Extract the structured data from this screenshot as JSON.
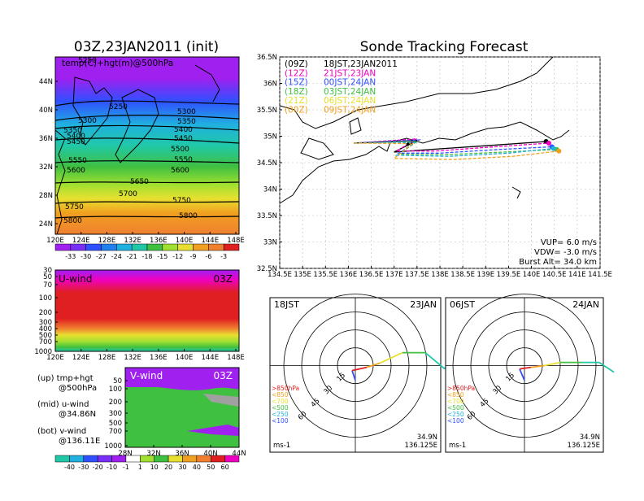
{
  "header": {
    "left_title": "03Z,23JAN2011 (init)",
    "right_title": "Sonde Tracking Forecast"
  },
  "colors": {
    "purple": "#a020f0",
    "blue": "#3050ff",
    "cyan": "#20b0e0",
    "teal": "#20c8a8",
    "green": "#40c040",
    "lime": "#a0e030",
    "yellow": "#e8e030",
    "orange": "#f0a020",
    "red": "#e02020",
    "magenta": "#f000c0",
    "grey": "#a0a0a0"
  },
  "chart_data": [
    {
      "type": "heatmap",
      "title": "temp(C)+hgt(m)@500hPa",
      "x_ticks": [
        "120E",
        "124E",
        "128E",
        "132E",
        "136E",
        "140E",
        "144E",
        "148E"
      ],
      "y_ticks": [
        "24N",
        "28N",
        "32N",
        "36N",
        "40N",
        "44N"
      ],
      "contour_labels": [
        "5250",
        "5250",
        "5300",
        "5300",
        "5350",
        "5350",
        "5400",
        "5400",
        "5450",
        "5450",
        "5500",
        "5550",
        "5550",
        "5600",
        "5600",
        "5650",
        "5700",
        "5750",
        "5750",
        "5800",
        "5800"
      ],
      "colorbar": [
        "-33",
        "-30",
        "-27",
        "-24",
        "-21",
        "-18",
        "-15",
        "-12",
        "-9",
        "-6",
        "-3"
      ]
    },
    {
      "type": "heatmap",
      "title": "U-wind",
      "tag": "03Z",
      "x_ticks": [
        "120E",
        "124E",
        "128E",
        "132E",
        "136E",
        "140E",
        "144E",
        "148E"
      ],
      "y_ticks": [
        "30",
        "50",
        "70",
        "100",
        "200",
        "300",
        "400",
        "500",
        "700",
        "1000"
      ]
    },
    {
      "type": "heatmap",
      "title": "V-wind",
      "tag": "03Z",
      "x_ticks": [
        "28N",
        "32N",
        "36N",
        "40N",
        "44N"
      ],
      "y_ticks": [
        "50",
        "100",
        "200",
        "300",
        "500",
        "700",
        "1000"
      ],
      "colorbar": [
        "-40",
        "-30",
        "-20",
        "-10",
        "-1",
        "1",
        "10",
        "20",
        "30",
        "40",
        "50",
        "60"
      ]
    },
    {
      "type": "line",
      "title": "Sonde Tracking Forecast",
      "x_ticks": [
        "134.5E",
        "135E",
        "135.5E",
        "136E",
        "136.5E",
        "137E",
        "137.5E",
        "138E",
        "138.5E",
        "139E",
        "139.5E",
        "140E",
        "140.5E",
        "141E",
        "141.5E"
      ],
      "y_ticks": [
        "32.5N",
        "33N",
        "33.5N",
        "34N",
        "34.5N",
        "35N",
        "35.5N",
        "36N",
        "36.5N"
      ],
      "xlim": [
        134.5,
        141.5
      ],
      "ylim": [
        32.5,
        36.5
      ],
      "legend": [
        {
          "code": "(09Z)",
          "time": "18JST,23JAN2011"
        },
        {
          "code": "(12Z)",
          "time": "21JST,23JAN"
        },
        {
          "code": "(15Z)",
          "time": "00JST,24JAN"
        },
        {
          "code": "(18Z)",
          "time": "03JST,24JAN"
        },
        {
          "code": "(21Z)",
          "time": "06JST,24JAN"
        },
        {
          "code": "(00Z)",
          "time": "09JST,24JAN"
        }
      ],
      "series": [
        {
          "color": "black",
          "end": [
            140.32,
            34.9
          ],
          "points": [
            [
              136.12,
              34.87
            ],
            [
              137.5,
              34.92
            ],
            [
              137.0,
              34.7
            ],
            [
              137.8,
              34.75
            ],
            [
              139.0,
              34.82
            ],
            [
              140.32,
              34.9
            ]
          ]
        },
        {
          "color": "magenta",
          "end": [
            140.38,
            34.87
          ],
          "points": [
            [
              136.12,
              34.87
            ],
            [
              137.5,
              34.95
            ],
            [
              137.05,
              34.72
            ],
            [
              137.9,
              34.72
            ],
            [
              139.2,
              34.8
            ],
            [
              140.38,
              34.87
            ]
          ]
        },
        {
          "color": "blue",
          "end": [
            140.45,
            34.8
          ],
          "points": [
            [
              136.12,
              34.87
            ],
            [
              137.55,
              34.93
            ],
            [
              137.1,
              34.68
            ],
            [
              138.0,
              34.68
            ],
            [
              139.3,
              34.75
            ],
            [
              140.45,
              34.8
            ]
          ]
        },
        {
          "color": "green",
          "end": [
            140.55,
            34.75
          ],
          "points": [
            [
              136.12,
              34.87
            ],
            [
              137.5,
              34.9
            ],
            [
              137.1,
              34.66
            ],
            [
              138.1,
              34.65
            ],
            [
              139.4,
              34.7
            ],
            [
              140.55,
              34.75
            ]
          ]
        },
        {
          "color": "cyan",
          "end": [
            140.48,
            34.77
          ],
          "points": [
            [
              136.12,
              34.87
            ],
            [
              137.45,
              34.88
            ],
            [
              137.05,
              34.64
            ],
            [
              138.2,
              34.62
            ],
            [
              139.5,
              34.68
            ],
            [
              140.48,
              34.77
            ]
          ]
        },
        {
          "color": "orange",
          "end": [
            140.6,
            34.72
          ],
          "points": [
            [
              136.12,
              34.87
            ],
            [
              137.4,
              34.86
            ],
            [
              137.0,
              34.58
            ],
            [
              138.3,
              34.56
            ],
            [
              139.6,
              34.62
            ],
            [
              140.6,
              34.72
            ]
          ]
        }
      ],
      "params": [
        "VUP= 6.0 m/s",
        "VDW= -3.0 m/s",
        "Burst Alt= 34.0 km"
      ]
    },
    {
      "type": "line",
      "title": "hodograph",
      "time_left": "18JST",
      "date_right": "23JAN",
      "ring_labels": [
        "15",
        "30",
        "45",
        "60"
      ],
      "levels": [
        ">850hPa",
        "<850",
        "<700",
        "<500",
        "<250",
        "<100"
      ],
      "unit": "ms-1",
      "lat": "34.9N",
      "lon": "136.125E"
    },
    {
      "type": "line",
      "title": "hodograph",
      "time_left": "06JST",
      "date_right": "24JAN",
      "ring_labels": [
        "15",
        "30",
        "45",
        "60"
      ],
      "levels": [
        ">850hPa",
        "<850",
        "<700",
        "<500",
        "<250",
        "<100"
      ],
      "unit": "ms-1",
      "lat": "34.9N",
      "lon": "136.125E"
    }
  ],
  "notes": {
    "up": "(up) tmp+hgt",
    "up2": "@500hPa",
    "mid": "(mid) u-wind",
    "mid2": "@34.86N",
    "bot": "(bot) v-wind",
    "bot2": "@136.11E"
  }
}
